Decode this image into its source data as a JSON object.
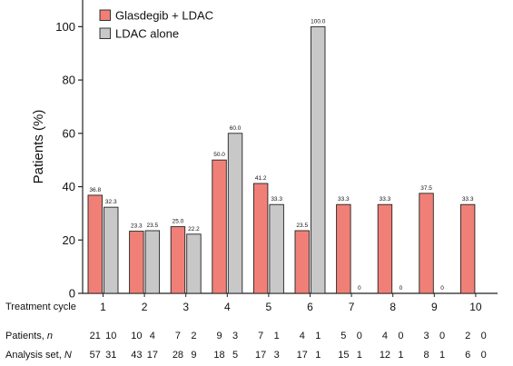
{
  "chart_data": {
    "type": "bar",
    "ylabel": "Patients (%)",
    "xlabel": "Treatment cycle",
    "ylim": [
      0,
      110
    ],
    "yticks": [
      0,
      20,
      40,
      60,
      80,
      100
    ],
    "categories": [
      "1",
      "2",
      "3",
      "4",
      "5",
      "6",
      "7",
      "8",
      "9",
      "10"
    ],
    "series": [
      {
        "name": "Glasdegib + LDAC",
        "color": "#f08077",
        "values": [
          36.8,
          23.3,
          25.0,
          50.0,
          41.2,
          23.5,
          33.3,
          33.3,
          37.5,
          33.3
        ],
        "labels": [
          "36.8",
          "23.3",
          "25.0",
          "50.0",
          "41.2",
          "23.5",
          "33.3",
          "33.3",
          "37.5",
          "33.3"
        ]
      },
      {
        "name": "LDAC alone",
        "color": "#c8c8c8",
        "values": [
          32.3,
          23.5,
          22.2,
          60.0,
          33.3,
          100.0,
          0,
          0,
          0,
          null
        ],
        "labels": [
          "32.3",
          "23.5",
          "22.2",
          "60.0",
          "33.3",
          "100.0",
          "0",
          "0",
          "0",
          ""
        ]
      }
    ],
    "legend_position": "top-left",
    "grid": false
  },
  "table": {
    "rows": [
      {
        "label": "Patients,",
        "label_italic": "n",
        "values": [
          [
            "21",
            "10"
          ],
          [
            "10",
            "4"
          ],
          [
            "7",
            "2"
          ],
          [
            "9",
            "3"
          ],
          [
            "7",
            "1"
          ],
          [
            "4",
            "1"
          ],
          [
            "5",
            "0"
          ],
          [
            "4",
            "0"
          ],
          [
            "3",
            "0"
          ],
          [
            "2",
            "0"
          ]
        ]
      },
      {
        "label": "Analysis set,",
        "label_italic": "N",
        "values": [
          [
            "57",
            "31"
          ],
          [
            "43",
            "17"
          ],
          [
            "28",
            "9"
          ],
          [
            "18",
            "5"
          ],
          [
            "17",
            "3"
          ],
          [
            "17",
            "1"
          ],
          [
            "15",
            "1"
          ],
          [
            "12",
            "1"
          ],
          [
            "8",
            "1"
          ],
          [
            "6",
            "0"
          ]
        ]
      }
    ]
  }
}
